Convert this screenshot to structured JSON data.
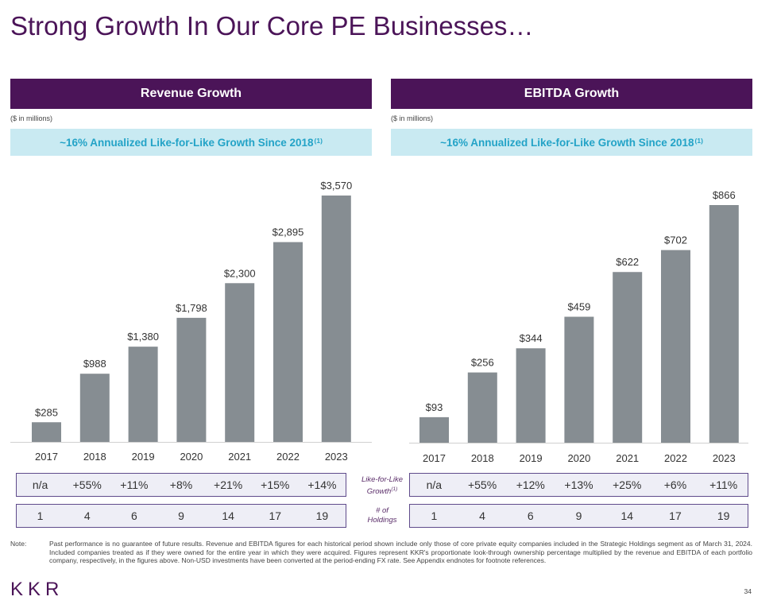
{
  "title": "Strong Growth In Our Core PE Businesses…",
  "panels": {
    "revenue": {
      "header": "Revenue Growth",
      "units": "($ in millions)",
      "callout": "~16% Annualized Like-for-Like Growth Since 2018",
      "callout_sup": "(1)"
    },
    "ebitda": {
      "header": "EBITDA Growth",
      "units": "($ in millions)",
      "callout": "~16% Annualized Like-for-Like Growth Since 2018",
      "callout_sup": "(1)"
    }
  },
  "chart_data": [
    {
      "type": "bar",
      "title": "Revenue Growth",
      "ylabel": "$ in millions",
      "categories": [
        "2017",
        "2018",
        "2019",
        "2020",
        "2021",
        "2022",
        "2023"
      ],
      "values": [
        285,
        988,
        1380,
        1798,
        2300,
        2895,
        3570
      ],
      "value_labels": [
        "$285",
        "$988",
        "$1,380",
        "$1,798",
        "$2,300",
        "$2,895",
        "$3,570"
      ],
      "ylim": [
        0,
        3570
      ]
    },
    {
      "type": "bar",
      "title": "EBITDA Growth",
      "ylabel": "$ in millions",
      "categories": [
        "2017",
        "2018",
        "2019",
        "2020",
        "2021",
        "2022",
        "2023"
      ],
      "values": [
        93,
        256,
        344,
        459,
        622,
        702,
        866
      ],
      "value_labels": [
        "$93",
        "$256",
        "$344",
        "$459",
        "$622",
        "$702",
        "$866"
      ],
      "ylim": [
        0,
        866
      ]
    }
  ],
  "rows": {
    "revenue_growth": [
      "n/a",
      "+55%",
      "+11%",
      "+8%",
      "+21%",
      "+15%",
      "+14%"
    ],
    "revenue_holdings": [
      "1",
      "4",
      "6",
      "9",
      "14",
      "17",
      "19"
    ],
    "ebitda_growth": [
      "n/a",
      "+55%",
      "+12%",
      "+13%",
      "+25%",
      "+6%",
      "+11%"
    ],
    "ebitda_holdings": [
      "1",
      "4",
      "6",
      "9",
      "14",
      "17",
      "19"
    ]
  },
  "row_labels": {
    "growth_line1": "Like-for-Like",
    "growth_line2": "Growth",
    "growth_sup": "(1)",
    "holdings_line1": "# of",
    "holdings_line2": "Holdings"
  },
  "footer": {
    "note_label": "Note:",
    "note_text": "Past performance is no guarantee of future results. Revenue and EBITDA figures for each historical period shown include only those of core private equity companies included in the Strategic Holdings segment as of March 31, 2024. Included companies treated as if they were owned for the entire year in which they were acquired. Figures represent KKR's proportionate look-through ownership percentage multiplied by the revenue and EBITDA of each portfolio company, respectively, in the figures above. Non-USD investments have been converted at the period-ending FX rate. See Appendix endnotes for footnote references.",
    "logo": "KKR",
    "page_number": "34"
  }
}
